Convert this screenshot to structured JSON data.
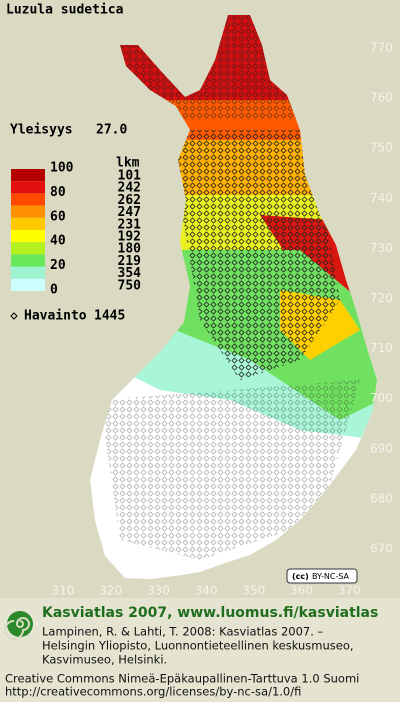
{
  "title": "Luzula sudetica",
  "frequency": {
    "label": "Yleisyys",
    "value": "27.0"
  },
  "legend": {
    "count_header": "lkm",
    "scale_labels": [
      100,
      80,
      60,
      40,
      20,
      0
    ],
    "counts": [
      101,
      242,
      262,
      247,
      231,
      192,
      180,
      219,
      354,
      750
    ],
    "colors": [
      "#b40000",
      "#e41010",
      "#ff4a00",
      "#ff9000",
      "#ffc800",
      "#ffff00",
      "#b4f020",
      "#66e85a",
      "#9cf5d0",
      "#ccffff"
    ]
  },
  "observations": {
    "label": "Havainto",
    "count": 1445
  },
  "axes": {
    "y_ticks": [
      770,
      760,
      750,
      740,
      730,
      720,
      710,
      700,
      690,
      680,
      670
    ],
    "x_ticks": [
      310,
      320,
      330,
      340,
      350,
      360,
      370
    ]
  },
  "license_badge": "BY-NC-SA",
  "footer": {
    "brand": "Kasviatlas 2007, www.luomus.fi/kasviatlas",
    "citation": [
      "Lampinen, R. & Lahti, T. 2008: Kasviatlas 2007. –",
      "Helsingin Yliopisto, Luonnontieteellinen keskusmuseo,",
      "Kasvimuseo, Helsinki."
    ],
    "license": [
      "Creative Commons Nimeä-Epäkaupallinen-Tarttuva 1.0 Suomi",
      "http://creativecommons.org/licenses/by-nc-sa/1.0/fi"
    ]
  }
}
